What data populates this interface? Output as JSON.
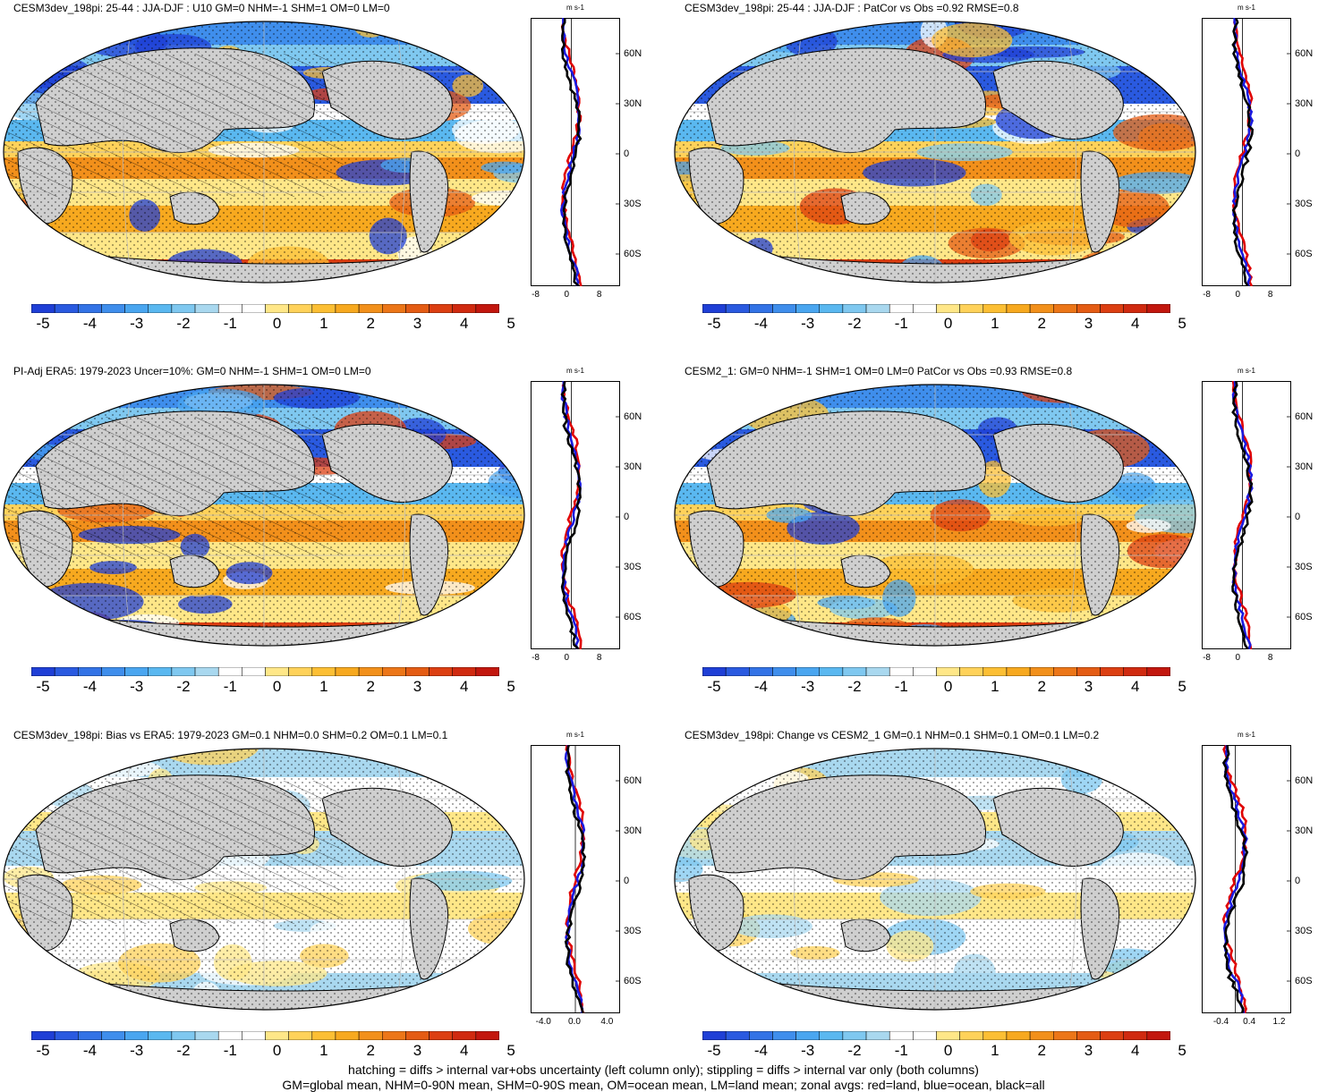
{
  "units": "m s-1",
  "colorbar": {
    "colors": [
      "#1f3fd6",
      "#2a5ae0",
      "#3373e6",
      "#3f8eec",
      "#4aa6f0",
      "#5ab8f0",
      "#7fc8f0",
      "#a9d8ef",
      "#ffffff",
      "#ffffff",
      "#ffe788",
      "#ffd25a",
      "#fcbf34",
      "#f7a91f",
      "#f2901b",
      "#ec7618",
      "#e45c14",
      "#dc3f12",
      "#d02a10",
      "#c2170e"
    ],
    "labels": [
      "-5",
      "-4",
      "-3",
      "-2",
      "-1",
      "0",
      "1",
      "2",
      "3",
      "4",
      "5"
    ]
  },
  "lat_labels": [
    "60N",
    "30N",
    "0",
    "30S",
    "60S"
  ],
  "panels": [
    {
      "title": "CESM3dev_198pi: 25-44 : JJA-DJF : U10 GM=0 NHM=-1 SHM=1 OM=0 LM=0",
      "zonal_ticks": [
        "-8",
        "0",
        "8"
      ],
      "hatching": true,
      "chart_data": {
        "type": "line",
        "x_axis": "m s-1",
        "y_axis": "latitude",
        "xlim": [
          -10,
          12
        ],
        "series": [
          {
            "name": "land",
            "color": "#e00000"
          },
          {
            "name": "ocean",
            "color": "#1a1ae0"
          },
          {
            "name": "all",
            "color": "#000000"
          }
        ]
      }
    },
    {
      "title": "CESM3dev_198pi: 25-44 : JJA-DJF : PatCor vs Obs =0.92 RMSE=0.8",
      "zonal_ticks": [
        "-8",
        "0",
        "8"
      ],
      "hatching": false,
      "chart_data": {
        "type": "line",
        "x_axis": "m s-1",
        "y_axis": "latitude",
        "xlim": [
          -10,
          12
        ],
        "series": [
          {
            "name": "land",
            "color": "#e00000"
          },
          {
            "name": "ocean",
            "color": "#1a1ae0"
          },
          {
            "name": "all",
            "color": "#000000"
          }
        ]
      }
    },
    {
      "title": "PI-Adj ERA5: 1979-2023 Uncer=10%: GM=0 NHM=-1 SHM=1 OM=0 LM=0",
      "zonal_ticks": [
        "-8",
        "0",
        "8"
      ],
      "hatching": true,
      "chart_data": {
        "type": "line",
        "x_axis": "m s-1",
        "y_axis": "latitude",
        "xlim": [
          -10,
          12
        ],
        "series": [
          {
            "name": "land",
            "color": "#e00000"
          },
          {
            "name": "ocean",
            "color": "#1a1ae0"
          },
          {
            "name": "all",
            "color": "#000000"
          }
        ]
      }
    },
    {
      "title": "CESM2_1: GM=0 NHM=-1 SHM=1 OM=0 LM=0 PatCor vs Obs =0.93 RMSE=0.8",
      "zonal_ticks": [
        "-8",
        "0",
        "8"
      ],
      "hatching": false,
      "chart_data": {
        "type": "line",
        "x_axis": "m s-1",
        "y_axis": "latitude",
        "xlim": [
          -10,
          12
        ],
        "series": [
          {
            "name": "land",
            "color": "#e00000"
          },
          {
            "name": "ocean",
            "color": "#1a1ae0"
          },
          {
            "name": "all",
            "color": "#000000"
          }
        ]
      }
    },
    {
      "title": "CESM3dev_198pi: Bias vs ERA5: 1979-2023 GM=0.1 NHM=0.0 SHM=0.2 OM=0.1 LM=0.1",
      "zonal_ticks": [
        "-4.0",
        "0.0",
        "4.0"
      ],
      "hatching": true,
      "chart_data": {
        "type": "line",
        "x_axis": "m s-1",
        "y_axis": "latitude",
        "xlim": [
          -5.5,
          5.5
        ],
        "series": [
          {
            "name": "land",
            "color": "#e00000"
          },
          {
            "name": "ocean",
            "color": "#1a1ae0"
          },
          {
            "name": "all",
            "color": "#000000"
          }
        ]
      }
    },
    {
      "title": "CESM3dev_198pi: Change vs CESM2_1 GM=0.1 NHM=0.1 SHM=0.1 OM=0.1 LM=0.2",
      "zonal_ticks": [
        "-0.4",
        "0.4",
        "1.2"
      ],
      "hatching": false,
      "chart_data": {
        "type": "line",
        "x_axis": "m s-1",
        "y_axis": "latitude",
        "xlim": [
          -0.9,
          1.5
        ],
        "series": [
          {
            "name": "land",
            "color": "#e00000"
          },
          {
            "name": "ocean",
            "color": "#1a1ae0"
          },
          {
            "name": "all",
            "color": "#000000"
          }
        ]
      }
    }
  ],
  "footer": {
    "line1": "hatching = diffs > internal var+obs uncertainty (left column only); stippling = diffs > internal var only (both columns)",
    "line2": "GM=global mean, NHM=0-90N mean, SHM=0-90S mean, OM=ocean mean, LM=land mean; zonal avgs: red=land, blue=ocean, black=all"
  }
}
